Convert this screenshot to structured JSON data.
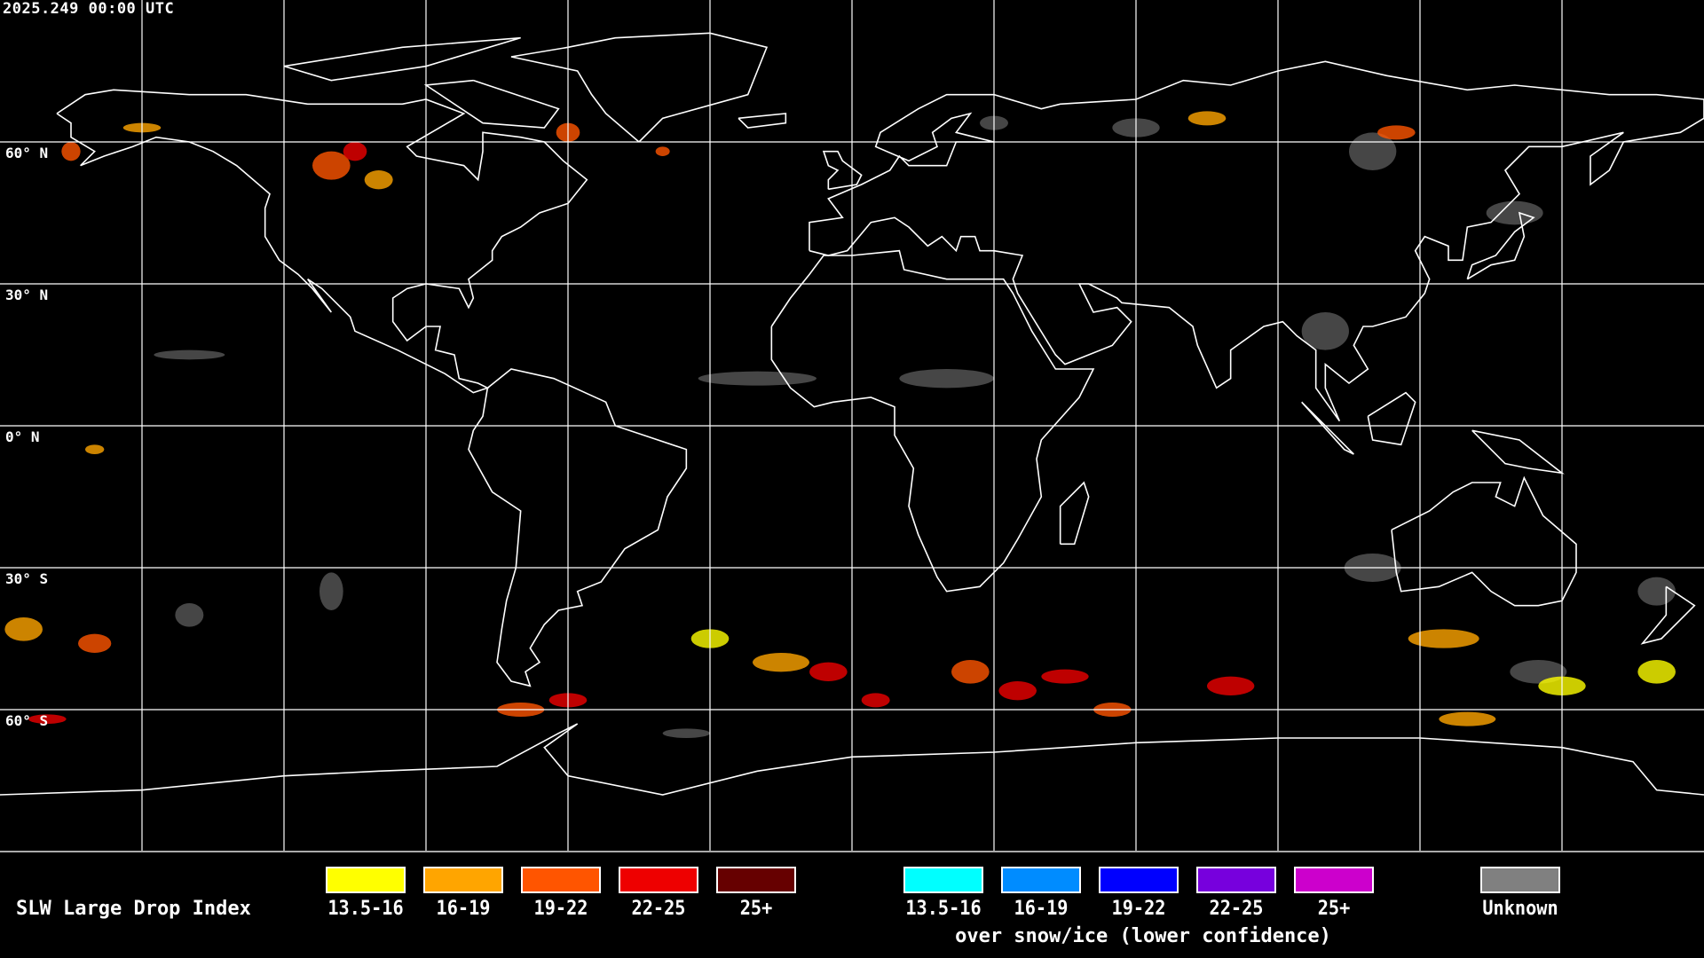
{
  "header": {
    "timestamp": "2025.249 00:00 UTC"
  },
  "map": {
    "projection": "equirectangular",
    "grid_interval_deg": 30,
    "lat_labels": [
      "60° N",
      "30° N",
      "0° N",
      "30° S",
      "60° S"
    ]
  },
  "legend": {
    "title": "SLW Large Drop Index",
    "primary": [
      {
        "label": "13.5-16",
        "color": "#ffff00"
      },
      {
        "label": "16-19",
        "color": "#ffa500"
      },
      {
        "label": "19-22",
        "color": "#ff5500"
      },
      {
        "label": "22-25",
        "color": "#ee0000"
      },
      {
        "label": "25+",
        "color": "#660000"
      }
    ],
    "snow_ice": [
      {
        "label": "13.5-16",
        "color": "#00ffff"
      },
      {
        "label": "16-19",
        "color": "#008cff"
      },
      {
        "label": "19-22",
        "color": "#0000ff"
      },
      {
        "label": "22-25",
        "color": "#7700dd"
      },
      {
        "label": "25+",
        "color": "#cc00cc"
      }
    ],
    "snow_ice_caption": "over snow/ice (lower confidence)",
    "unknown": {
      "label": "Unknown",
      "color": "#808080"
    }
  }
}
